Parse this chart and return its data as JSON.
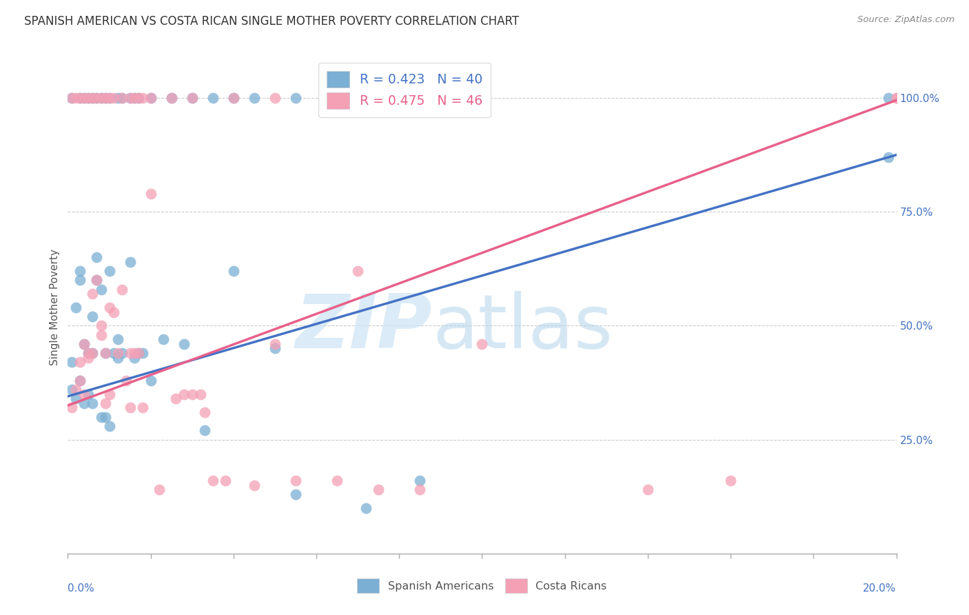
{
  "title": "SPANISH AMERICAN VS COSTA RICAN SINGLE MOTHER POVERTY CORRELATION CHART",
  "source": "Source: ZipAtlas.com",
  "ylabel": "Single Mother Poverty",
  "legend_label1": "Spanish Americans",
  "legend_label2": "Costa Ricans",
  "R1": 0.423,
  "N1": 40,
  "R2": 0.475,
  "N2": 46,
  "color1": "#7bafd4",
  "color2": "#f4a0b5",
  "line_color1": "#4472c4",
  "line_color2": "#e8608a",
  "grid_color": "#cccccc",
  "title_color": "#333333",
  "source_color": "#888888",
  "axis_label_color": "#4472c4",
  "xlim": [
    0.0,
    0.2
  ],
  "ylim": [
    0.0,
    1.08
  ],
  "blue_intercept": 0.345,
  "blue_slope": 2.65,
  "pink_intercept": 0.325,
  "pink_slope": 3.35,
  "blue_scatter_x": [
    0.001,
    0.001,
    0.002,
    0.002,
    0.003,
    0.003,
    0.003,
    0.004,
    0.004,
    0.005,
    0.005,
    0.006,
    0.006,
    0.006,
    0.007,
    0.007,
    0.008,
    0.008,
    0.009,
    0.009,
    0.01,
    0.01,
    0.011,
    0.012,
    0.012,
    0.013,
    0.015,
    0.016,
    0.017,
    0.018,
    0.02,
    0.023,
    0.028,
    0.033,
    0.04,
    0.05,
    0.055,
    0.072,
    0.085,
    0.198
  ],
  "blue_scatter_y": [
    0.36,
    0.42,
    0.34,
    0.54,
    0.6,
    0.62,
    0.38,
    0.33,
    0.46,
    0.44,
    0.35,
    0.33,
    0.44,
    0.52,
    0.6,
    0.65,
    0.58,
    0.3,
    0.3,
    0.44,
    0.28,
    0.62,
    0.44,
    0.47,
    0.43,
    0.44,
    0.64,
    0.43,
    0.44,
    0.44,
    0.38,
    0.47,
    0.46,
    0.27,
    0.62,
    0.45,
    0.13,
    0.1,
    0.16,
    0.87
  ],
  "pink_scatter_x": [
    0.001,
    0.002,
    0.003,
    0.003,
    0.004,
    0.004,
    0.005,
    0.005,
    0.006,
    0.006,
    0.007,
    0.008,
    0.008,
    0.009,
    0.009,
    0.01,
    0.01,
    0.011,
    0.012,
    0.013,
    0.014,
    0.015,
    0.015,
    0.016,
    0.017,
    0.018,
    0.02,
    0.022,
    0.026,
    0.028,
    0.03,
    0.032,
    0.033,
    0.035,
    0.038,
    0.045,
    0.05,
    0.055,
    0.065,
    0.07,
    0.075,
    0.085,
    0.1,
    0.14,
    0.16,
    0.2
  ],
  "pink_scatter_y": [
    0.32,
    0.36,
    0.38,
    0.42,
    0.35,
    0.46,
    0.44,
    0.43,
    0.44,
    0.57,
    0.6,
    0.5,
    0.48,
    0.33,
    0.44,
    0.35,
    0.54,
    0.53,
    0.44,
    0.58,
    0.38,
    0.44,
    0.32,
    0.44,
    0.44,
    0.32,
    0.79,
    0.14,
    0.34,
    0.35,
    0.35,
    0.35,
    0.31,
    0.16,
    0.16,
    0.15,
    0.46,
    0.16,
    0.16,
    0.62,
    0.14,
    0.14,
    0.46,
    0.14,
    0.16,
    1.0
  ],
  "blue_top_x": [
    0.001,
    0.003,
    0.004,
    0.005,
    0.006,
    0.007,
    0.008,
    0.009,
    0.01,
    0.012,
    0.013,
    0.015,
    0.016,
    0.017,
    0.02,
    0.025,
    0.03,
    0.035,
    0.04,
    0.045,
    0.055,
    0.198
  ],
  "pink_top_x": [
    0.001,
    0.002,
    0.003,
    0.004,
    0.005,
    0.006,
    0.007,
    0.008,
    0.009,
    0.01,
    0.011,
    0.013,
    0.015,
    0.016,
    0.017,
    0.018,
    0.02,
    0.025,
    0.03,
    0.04,
    0.05,
    0.065,
    0.085,
    0.1,
    0.2
  ]
}
